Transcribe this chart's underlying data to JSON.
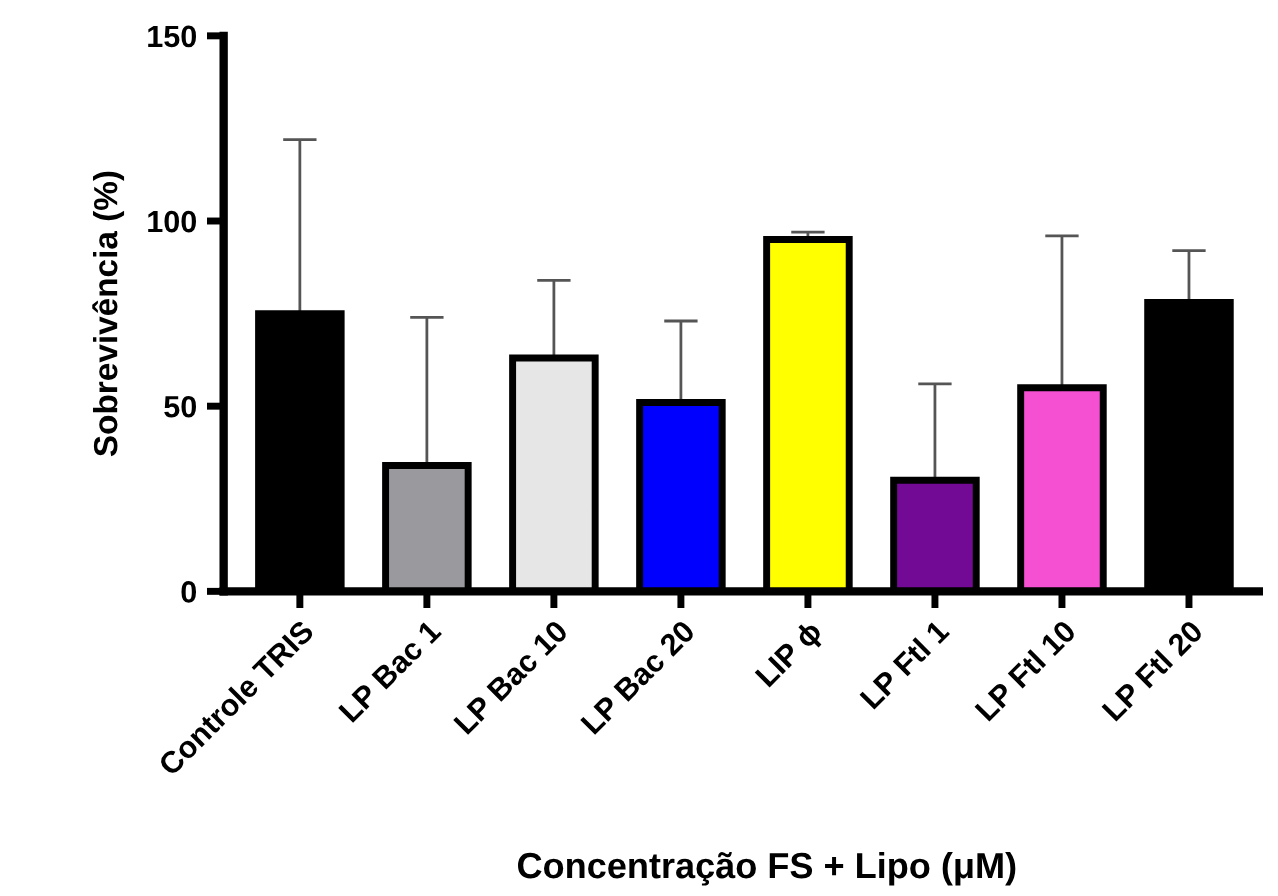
{
  "chart_data": {
    "type": "bar",
    "categories": [
      "Controle TRIS",
      "LP Bac 1",
      "LP Bac 10",
      "LP Bac 20",
      "LIP ϕ",
      "LP Ftl 1",
      "LP Ftl 10",
      "LP Ftl 20"
    ],
    "values": [
      75,
      34,
      63,
      51,
      95,
      30,
      55,
      78
    ],
    "colors": [
      "#000000",
      "#9a9a9e",
      "#e6e6e6",
      "#0000ff",
      "#ffff00",
      "#730a96",
      "#f54fd2",
      "#000000"
    ],
    "errors": [
      [
        75,
        122
      ],
      [
        34,
        74
      ],
      [
        63,
        84
      ],
      [
        51,
        73
      ],
      [
        95,
        97
      ],
      [
        30,
        56
      ],
      [
        55,
        96
      ],
      [
        78,
        92
      ]
    ],
    "xlabel": "Concentração FS + Lipo (μM)",
    "ylabel": "Sobrevivência (%)",
    "ylim": [
      0,
      150
    ],
    "yticks": [
      0,
      50,
      100,
      150
    ],
    "grid": false,
    "legend": false
  }
}
